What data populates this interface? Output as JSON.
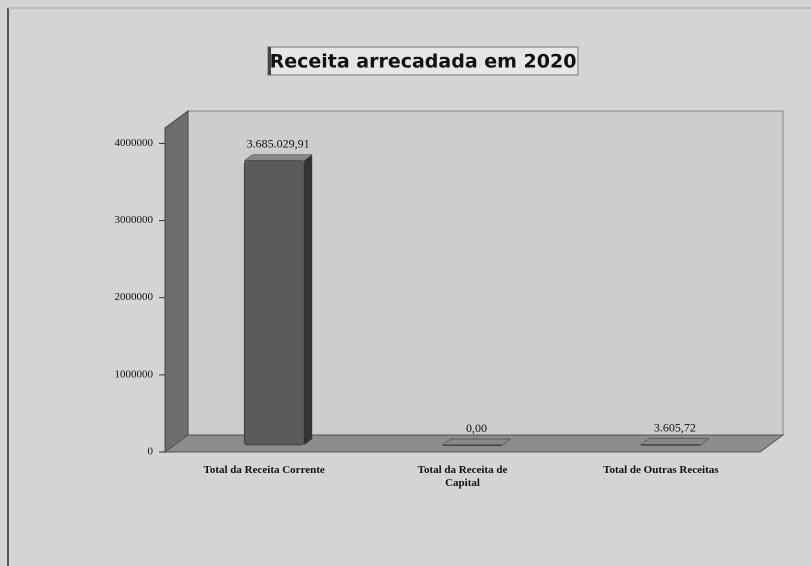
{
  "chart_data": {
    "type": "bar3d",
    "title": "Receita arrecadada em 2020",
    "categories": [
      "Total da Receita Corrente",
      "Total da Receita de Capital",
      "Total de Outras Receitas"
    ],
    "values": [
      3685029.91,
      0,
      3605.72
    ],
    "value_labels": [
      "3.685.029,91",
      "0,00",
      "3.605,72"
    ],
    "color": "#5a5a5a",
    "ylim": [
      0,
      4200000
    ],
    "yticks": [
      0,
      1000000,
      2000000,
      3000000,
      4000000
    ],
    "grid": false
  }
}
